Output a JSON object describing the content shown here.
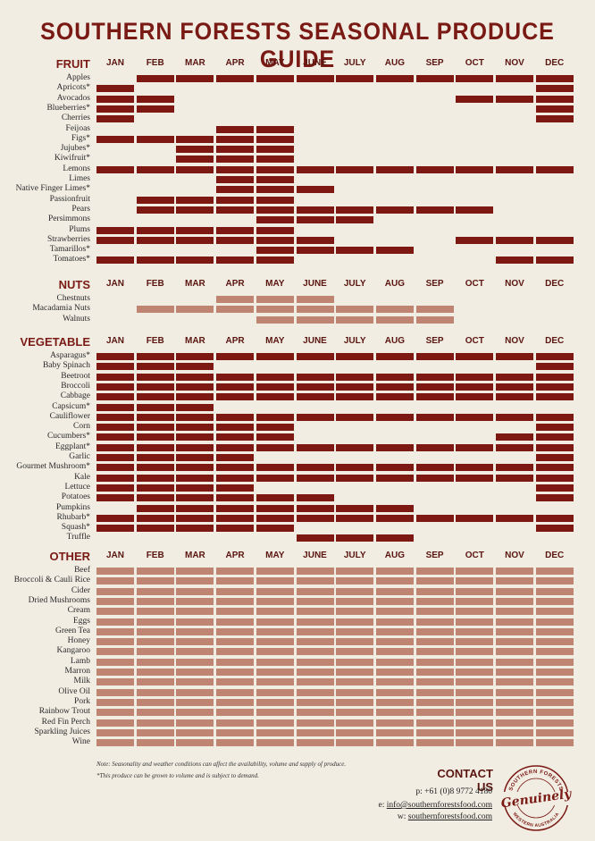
{
  "title": "SOUTHERN FORESTS SEASONAL PRODUCE GUIDE",
  "months": [
    "JAN",
    "FEB",
    "MAR",
    "APR",
    "MAY",
    "JUNE",
    "JULY",
    "AUG",
    "SEP",
    "OCT",
    "NOV",
    "DEC"
  ],
  "colors": {
    "dark": "#7d1812",
    "light": "#c08473",
    "accent": "#7a1a14"
  },
  "sections": [
    {
      "title": "FRUIT",
      "shade": "dark",
      "items": [
        {
          "name": "Apples",
          "months": [
            2,
            3,
            4,
            5,
            6,
            7,
            8,
            9,
            10,
            11,
            12
          ]
        },
        {
          "name": "Apricots*",
          "months": [
            1,
            12
          ]
        },
        {
          "name": "Avocados",
          "months": [
            1,
            2,
            10,
            11,
            12
          ]
        },
        {
          "name": "Blueberries*",
          "months": [
            1,
            2,
            12
          ]
        },
        {
          "name": "Cherries",
          "months": [
            1,
            12
          ]
        },
        {
          "name": "Feijoas",
          "months": [
            4,
            5
          ]
        },
        {
          "name": "Figs*",
          "months": [
            1,
            2,
            3,
            4,
            5
          ]
        },
        {
          "name": "Jujubes*",
          "months": [
            3,
            4,
            5
          ]
        },
        {
          "name": "Kiwifruit*",
          "months": [
            3,
            4,
            5
          ]
        },
        {
          "name": "Lemons",
          "months": [
            1,
            2,
            3,
            4,
            5,
            6,
            7,
            8,
            9,
            10,
            11,
            12
          ]
        },
        {
          "name": "Limes",
          "months": [
            4,
            5
          ]
        },
        {
          "name": "Native Finger Limes*",
          "months": [
            4,
            5,
            6
          ]
        },
        {
          "name": "Passionfruit",
          "months": [
            2,
            3,
            4,
            5
          ]
        },
        {
          "name": "Pears",
          "months": [
            2,
            3,
            4,
            5,
            6,
            7,
            8,
            9,
            10
          ]
        },
        {
          "name": "Persimmons",
          "months": [
            5,
            6,
            7
          ]
        },
        {
          "name": "Plums",
          "months": [
            1,
            2,
            3,
            4,
            5
          ]
        },
        {
          "name": "Strawberries",
          "months": [
            1,
            2,
            3,
            4,
            5,
            6,
            10,
            11,
            12
          ]
        },
        {
          "name": "Tamarillos*",
          "months": [
            5,
            6,
            7,
            8
          ]
        },
        {
          "name": "Tomatoes*",
          "months": [
            1,
            2,
            3,
            4,
            5,
            11,
            12
          ]
        }
      ]
    },
    {
      "title": "NUTS",
      "shade": "light",
      "items": [
        {
          "name": "Chestnuts",
          "months": [
            4,
            5,
            6
          ]
        },
        {
          "name": "Macadamia Nuts",
          "months": [
            2,
            3,
            4,
            5,
            6,
            7,
            8,
            9
          ]
        },
        {
          "name": "Walnuts",
          "months": [
            5,
            6,
            7,
            8,
            9
          ]
        }
      ]
    },
    {
      "title": "VEGETABLE",
      "shade": "dark",
      "items": [
        {
          "name": "Asparagus*",
          "months": [
            1,
            2,
            3,
            4,
            5,
            6,
            7,
            8,
            9,
            10,
            11,
            12
          ]
        },
        {
          "name": "Baby Spinach",
          "months": [
            1,
            2,
            3,
            12
          ]
        },
        {
          "name": "Beetroot",
          "months": [
            1,
            2,
            3,
            4,
            5,
            6,
            7,
            8,
            9,
            10,
            11,
            12
          ]
        },
        {
          "name": "Broccoli",
          "months": [
            1,
            2,
            3,
            4,
            5,
            6,
            7,
            8,
            9,
            10,
            11,
            12
          ]
        },
        {
          "name": "Cabbage",
          "months": [
            1,
            2,
            3,
            4,
            5,
            6,
            7,
            8,
            9,
            10,
            11,
            12
          ]
        },
        {
          "name": "Capsicum*",
          "months": [
            1,
            2,
            3
          ]
        },
        {
          "name": "Cauliflower",
          "months": [
            1,
            2,
            3,
            4,
            5,
            6,
            7,
            8,
            9,
            10,
            11,
            12
          ]
        },
        {
          "name": "Corn",
          "months": [
            1,
            2,
            3,
            4,
            5,
            12
          ]
        },
        {
          "name": "Cucumbers*",
          "months": [
            1,
            2,
            3,
            4,
            5,
            11,
            12
          ]
        },
        {
          "name": "Eggplant*",
          "months": [
            1,
            2,
            3,
            4,
            5,
            6,
            7,
            8,
            9,
            10,
            11,
            12
          ]
        },
        {
          "name": "Garlic",
          "months": [
            1,
            2,
            3,
            4,
            12
          ]
        },
        {
          "name": "Gourmet Mushroom*",
          "months": [
            1,
            2,
            3,
            4,
            5,
            6,
            7,
            8,
            9,
            10,
            11,
            12
          ]
        },
        {
          "name": "Kale",
          "months": [
            1,
            2,
            3,
            4,
            5,
            6,
            7,
            8,
            9,
            10,
            11,
            12
          ]
        },
        {
          "name": "Lettuce",
          "months": [
            1,
            2,
            3,
            4,
            12
          ]
        },
        {
          "name": "Potatoes",
          "months": [
            1,
            2,
            3,
            4,
            5,
            6,
            12
          ]
        },
        {
          "name": "Pumpkins",
          "months": [
            2,
            3,
            4,
            5,
            6,
            7,
            8
          ]
        },
        {
          "name": "Rhubarb*",
          "months": [
            1,
            2,
            3,
            4,
            5,
            6,
            7,
            8,
            9,
            10,
            11,
            12
          ]
        },
        {
          "name": "Squash*",
          "months": [
            1,
            2,
            3,
            4,
            5,
            12
          ]
        },
        {
          "name": "Truffle",
          "months": [
            6,
            7,
            8
          ]
        }
      ]
    },
    {
      "title": "OTHER",
      "shade": "light",
      "items": [
        {
          "name": "Beef",
          "months": [
            1,
            2,
            3,
            4,
            5,
            6,
            7,
            8,
            9,
            10,
            11,
            12
          ]
        },
        {
          "name": "Broccoli & Cauli Rice",
          "months": [
            1,
            2,
            3,
            4,
            5,
            6,
            7,
            8,
            9,
            10,
            11,
            12
          ]
        },
        {
          "name": "Cider",
          "months": [
            1,
            2,
            3,
            4,
            5,
            6,
            7,
            8,
            9,
            10,
            11,
            12
          ]
        },
        {
          "name": "Dried Mushrooms",
          "months": [
            1,
            2,
            3,
            4,
            5,
            6,
            7,
            8,
            9,
            10,
            11,
            12
          ]
        },
        {
          "name": "Cream",
          "months": [
            1,
            2,
            3,
            4,
            5,
            6,
            7,
            8,
            9,
            10,
            11,
            12
          ]
        },
        {
          "name": "Eggs",
          "months": [
            1,
            2,
            3,
            4,
            5,
            6,
            7,
            8,
            9,
            10,
            11,
            12
          ]
        },
        {
          "name": "Green Tea",
          "months": [
            1,
            2,
            3,
            4,
            5,
            6,
            7,
            8,
            9,
            10,
            11,
            12
          ]
        },
        {
          "name": "Honey",
          "months": [
            1,
            2,
            3,
            4,
            5,
            6,
            7,
            8,
            9,
            10,
            11,
            12
          ]
        },
        {
          "name": "Kangaroo",
          "months": [
            1,
            2,
            3,
            4,
            5,
            6,
            7,
            8,
            9,
            10,
            11,
            12
          ]
        },
        {
          "name": "Lamb",
          "months": [
            1,
            2,
            3,
            4,
            5,
            6,
            7,
            8,
            9,
            10,
            11,
            12
          ]
        },
        {
          "name": "Marron",
          "months": [
            1,
            2,
            3,
            4,
            5,
            6,
            7,
            8,
            9,
            10,
            11,
            12
          ]
        },
        {
          "name": "Milk",
          "months": [
            1,
            2,
            3,
            4,
            5,
            6,
            7,
            8,
            9,
            10,
            11,
            12
          ]
        },
        {
          "name": "Olive Oil",
          "months": [
            1,
            2,
            3,
            4,
            5,
            6,
            7,
            8,
            9,
            10,
            11,
            12
          ]
        },
        {
          "name": "Pork",
          "months": [
            1,
            2,
            3,
            4,
            5,
            6,
            7,
            8,
            9,
            10,
            11,
            12
          ]
        },
        {
          "name": "Rainbow Trout",
          "months": [
            1,
            2,
            3,
            4,
            5,
            6,
            7,
            8,
            9,
            10,
            11,
            12
          ]
        },
        {
          "name": "Red Fin Perch",
          "months": [
            1,
            2,
            3,
            4,
            5,
            6,
            7,
            8,
            9,
            10,
            11,
            12
          ]
        },
        {
          "name": "Sparkling Juices",
          "months": [
            1,
            2,
            3,
            4,
            5,
            6,
            7,
            8,
            9,
            10,
            11,
            12
          ]
        },
        {
          "name": "Wine",
          "months": [
            1,
            2,
            3,
            4,
            5,
            6,
            7,
            8,
            9,
            10,
            11,
            12
          ]
        }
      ]
    }
  ],
  "notes": [
    "Note: Seasonality and weather conditions can affect the availability, volume and supply of produce.",
    "*This produce can be grown to volume and is subject to demand."
  ],
  "contact": {
    "title": "CONTACT US",
    "phone": "p: +61 (0)8 9772 4180",
    "email_prefix": "e: ",
    "email": "info@southernforestsfood.com",
    "web_prefix": "w: ",
    "web": "southernforestsfood.com"
  },
  "logo": {
    "top_text": "SOUTHERN FORESTS",
    "script_text": "Genuinely",
    "bottom_text": "WESTERN AUSTRALIA"
  }
}
